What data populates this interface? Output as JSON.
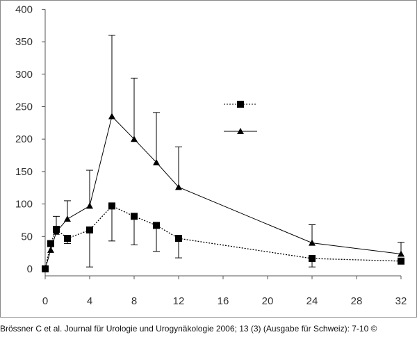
{
  "caption": "Brössner C et al. Journal für Urologie und Urogynäkologie 2006; 13 (3) (Ausgabe für Schweiz): 7-10 ©",
  "chart_data": {
    "type": "line",
    "title": "",
    "xlabel": "",
    "ylabel": "",
    "xlim": [
      0,
      32
    ],
    "ylim": [
      0,
      400
    ],
    "x_ticks": [
      0,
      4,
      8,
      12,
      16,
      20,
      24,
      28,
      32
    ],
    "y_ticks": [
      0,
      50,
      100,
      150,
      200,
      250,
      300,
      350,
      400
    ],
    "grid": false,
    "legend_position": "top-right",
    "series": [
      {
        "marker": "square",
        "line_style": "dotted",
        "color": "#000000",
        "x": [
          0,
          0.5,
          1,
          2,
          4,
          6,
          8,
          10,
          12,
          24,
          32
        ],
        "y": [
          0,
          39,
          61,
          47,
          60,
          97,
          81,
          67,
          47,
          16,
          12
        ],
        "error_low": [
          null,
          null,
          null,
          39,
          3,
          43,
          37,
          27,
          17,
          3,
          null
        ],
        "error_high": [
          null,
          null,
          null,
          null,
          null,
          null,
          null,
          null,
          null,
          null,
          null
        ]
      },
      {
        "marker": "triangle",
        "line_style": "solid",
        "color": "#000000",
        "x": [
          0,
          0.5,
          1,
          2,
          4,
          6,
          8,
          10,
          12,
          24,
          32
        ],
        "y": [
          0,
          29,
          57,
          77,
          97,
          235,
          200,
          164,
          126,
          40,
          23
        ],
        "error_low": [
          null,
          null,
          null,
          null,
          null,
          null,
          null,
          null,
          null,
          null,
          null
        ],
        "error_high": [
          null,
          null,
          81,
          105,
          152,
          360,
          294,
          241,
          188,
          68,
          41
        ]
      }
    ]
  }
}
